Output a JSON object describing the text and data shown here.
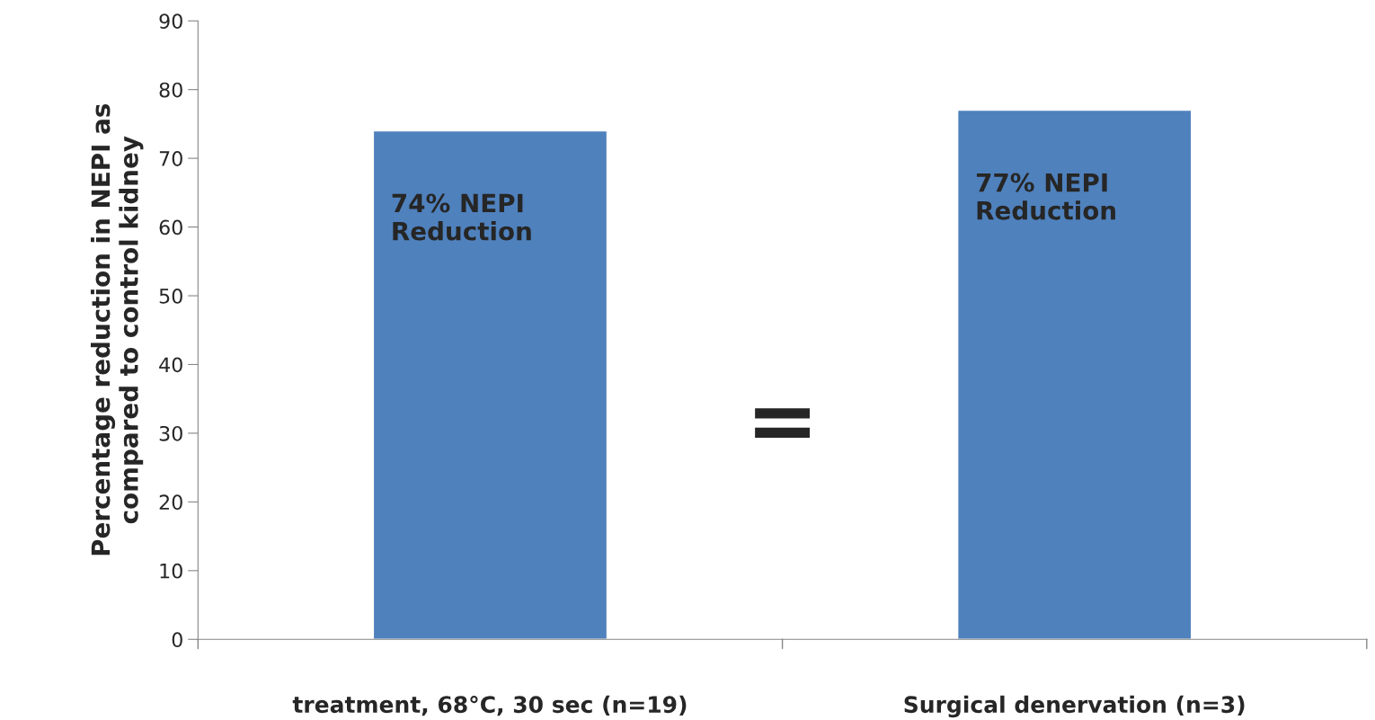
{
  "chart_data": {
    "type": "bar",
    "ylabel": "Percentage reduction in NEPI as\ncompared to control kidney",
    "categories": [
      "treatment, 68°C, 30 sec (n=19)",
      "Surgical denervation (n=3)"
    ],
    "values": [
      74,
      77
    ],
    "color": "#4f81bd",
    "value_labels": [
      "74% NEPI\nReduction",
      "77% NEPI\nReduction"
    ],
    "annotations": [
      "="
    ],
    "ylim": [
      0,
      90
    ],
    "yticks": [
      0,
      10,
      20,
      30,
      40,
      50,
      60,
      70,
      80,
      90
    ],
    "grid": false,
    "legend": false
  }
}
